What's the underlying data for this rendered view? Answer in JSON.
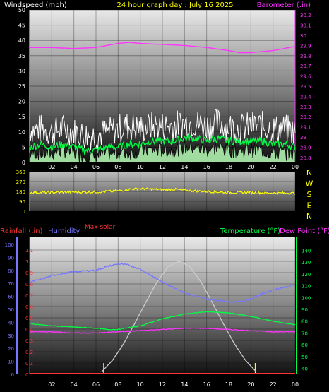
{
  "header": {
    "left_label": "Windspeed (mph)",
    "center_label": "24 hour graph day : July 16 2025",
    "right_label": "Barometer (.in)"
  },
  "colors": {
    "wind_label": "#ffffff",
    "title": "#ffff00",
    "barometer": "#ff33ff",
    "direction": "#ffff00",
    "rain": "#ff3333",
    "humidity": "#7777ff",
    "temperature": "#00ff44",
    "dewpoint": "#ff33ff",
    "solar": "#cccccc"
  },
  "chart_data": [
    {
      "type": "line",
      "name": "wind-and-barometer",
      "x_ticks": [
        "02",
        "04",
        "06",
        "08",
        "10",
        "12",
        "14",
        "16",
        "18",
        "20",
        "22",
        "00"
      ],
      "y_left_ticks": [
        "0",
        "5",
        "10",
        "15",
        "20",
        "25",
        "30",
        "35",
        "40",
        "45",
        "50"
      ],
      "y_left_range": [
        0,
        50
      ],
      "y_right_ticks": [
        "28.8",
        "28.9",
        "29",
        "29.1",
        "29.2",
        "29.3",
        "29.4",
        "29.5",
        "29.6",
        "29.7",
        "29.8",
        "29.9",
        "30",
        "30.1",
        "30.2"
      ],
      "y_right_range": [
        28.75,
        30.25
      ],
      "series": [
        {
          "key": "gust",
          "axis": "left",
          "x": [
            0,
            1,
            2,
            3,
            4,
            5,
            6,
            7,
            8,
            9,
            10,
            11,
            12,
            13,
            14,
            15,
            16,
            17,
            18,
            19,
            20,
            21,
            22,
            23,
            24
          ],
          "values": [
            11,
            11,
            10,
            11,
            10,
            9,
            9,
            10,
            11,
            12,
            11,
            12,
            12,
            12,
            13,
            13,
            12,
            13,
            12,
            11,
            12,
            12,
            11,
            11,
            10
          ]
        },
        {
          "key": "avg",
          "axis": "left",
          "x": [
            0,
            1,
            2,
            3,
            4,
            5,
            6,
            7,
            8,
            9,
            10,
            11,
            12,
            13,
            14,
            15,
            16,
            17,
            18,
            19,
            20,
            21,
            22,
            23,
            24
          ],
          "values": [
            5,
            6,
            5,
            6,
            5,
            4,
            4,
            5,
            5,
            6,
            6,
            7,
            7,
            7,
            8,
            8,
            7,
            8,
            7,
            7,
            7,
            7,
            6,
            6,
            5
          ]
        },
        {
          "key": "speed",
          "axis": "left",
          "x": [
            0,
            1,
            2,
            3,
            4,
            5,
            6,
            7,
            8,
            9,
            10,
            11,
            12,
            13,
            14,
            15,
            16,
            17,
            18,
            19,
            20,
            21,
            22,
            23,
            24
          ],
          "values": [
            3,
            3,
            3,
            4,
            3,
            2,
            2,
            3,
            3,
            3,
            4,
            4,
            4,
            4,
            5,
            5,
            4,
            5,
            4,
            4,
            4,
            4,
            3,
            3,
            3
          ]
        },
        {
          "key": "barometer",
          "axis": "right",
          "x": [
            0,
            2,
            4,
            6,
            8,
            9,
            10,
            12,
            14,
            16,
            18,
            19,
            20,
            22,
            24
          ],
          "values": [
            29.88,
            29.88,
            29.87,
            29.88,
            29.92,
            29.93,
            29.92,
            29.91,
            29.9,
            29.88,
            29.85,
            29.83,
            29.83,
            29.85,
            29.89
          ]
        }
      ]
    },
    {
      "type": "scatter",
      "name": "wind-direction",
      "y_ticks": [
        "360",
        "270",
        "180",
        "90",
        "0"
      ],
      "y_range": [
        0,
        360
      ],
      "side_labels": [
        "N",
        "W",
        "S",
        "E",
        "N"
      ],
      "x": [
        0,
        2,
        4,
        6,
        8,
        9,
        10,
        11,
        12,
        13,
        14,
        15,
        16,
        17,
        18,
        20,
        22,
        24
      ],
      "values": [
        170,
        170,
        175,
        175,
        185,
        200,
        205,
        200,
        195,
        200,
        190,
        185,
        180,
        175,
        170,
        170,
        165,
        165
      ]
    },
    {
      "type": "line",
      "name": "rain-humidity-temperature",
      "legend": {
        "rain": "Rainfall (.in)",
        "humidity": "Humidity",
        "solar": "Max solar",
        "temperature": "Temperature (°F)",
        "dewpoint": "Dew Point (°F)"
      },
      "x_ticks": [
        "02",
        "04",
        "06",
        "08",
        "10",
        "12",
        "14",
        "16",
        "18",
        "20",
        "22",
        "00"
      ],
      "y_humidity_ticks": [
        "0",
        "10",
        "20",
        "30",
        "40",
        "50",
        "60",
        "70",
        "80",
        "90",
        "100"
      ],
      "y_humidity_range": [
        0,
        100
      ],
      "y_rain_ticks": [
        "0",
        "0.1",
        "0.2",
        "0.3",
        "0.4",
        "0.5",
        "0.6",
        "0.7",
        "0.8",
        "0.9",
        "1",
        "1.1"
      ],
      "y_rain_range": [
        0,
        1.15
      ],
      "y_temp_ticks": [
        "40",
        "50",
        "60",
        "70",
        "80",
        "90",
        "100",
        "110",
        "120",
        "130",
        "140"
      ],
      "y_temp_range": [
        35,
        145
      ],
      "series": [
        {
          "key": "humidity",
          "axis": "humidity",
          "x": [
            0,
            1,
            2,
            4,
            6,
            7,
            8,
            9,
            10,
            11,
            12,
            13,
            14,
            15,
            16,
            17,
            18,
            19,
            20,
            21,
            22,
            23,
            24
          ],
          "values": [
            71,
            73,
            76,
            79,
            80,
            83,
            85,
            84,
            81,
            76,
            71,
            67,
            63,
            60,
            58,
            57,
            56,
            56,
            58,
            62,
            65,
            67,
            69
          ]
        },
        {
          "key": "temperature",
          "axis": "temp",
          "x": [
            0,
            2,
            4,
            6,
            7,
            8,
            10,
            12,
            14,
            16,
            18,
            20,
            22,
            24
          ],
          "values": [
            78,
            76,
            75,
            74,
            73,
            73,
            76,
            82,
            86,
            88,
            87,
            84,
            80,
            77
          ]
        },
        {
          "key": "dewpoint",
          "axis": "temp",
          "x": [
            0,
            2,
            4,
            6,
            8,
            10,
            12,
            14,
            16,
            18,
            20,
            22,
            24
          ],
          "values": [
            71,
            71,
            70,
            70,
            71,
            72,
            73,
            74,
            74,
            73,
            72,
            71,
            71
          ]
        },
        {
          "key": "solar",
          "axis": "temp",
          "x": [
            6.5,
            7.5,
            8.5,
            9.5,
            10.5,
            11.5,
            12.5,
            13.5,
            14.5,
            15.5,
            16.5,
            17.5,
            18.5,
            19.5,
            20.5
          ],
          "values": [
            37,
            47,
            61,
            78,
            96,
            113,
            126,
            131,
            126,
            113,
            96,
            78,
            61,
            47,
            37
          ]
        },
        {
          "key": "rain",
          "axis": "rain",
          "x": [
            0,
            24
          ],
          "values": [
            0,
            0
          ]
        }
      ],
      "markers": [
        6.7,
        20.4
      ]
    }
  ]
}
